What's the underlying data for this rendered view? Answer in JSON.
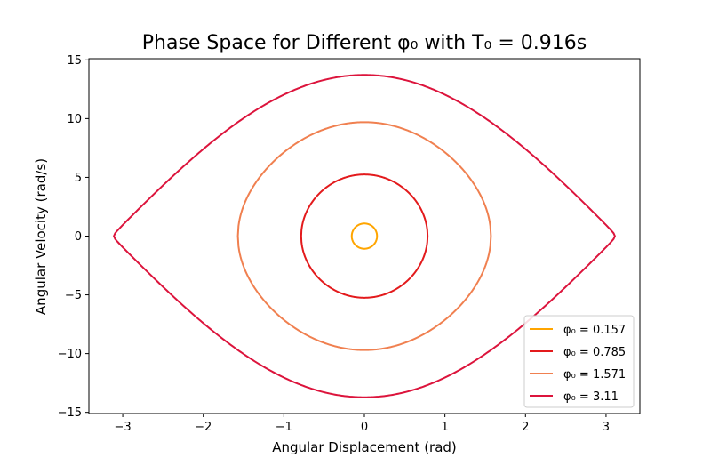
{
  "chart_data": {
    "type": "line",
    "title": "Phase Space for Different φ₀ with T₀ = 0.916s",
    "xlabel": "Angular Displacement (rad)",
    "ylabel": "Angular Velocity (rad/s)",
    "xlim": [
      -3.42,
      3.42
    ],
    "ylim": [
      -15.1,
      15.1
    ],
    "xticks": [
      -3,
      -2,
      -1,
      0,
      1,
      2,
      3
    ],
    "xtick_labels": [
      "−3",
      "−2",
      "−1",
      "0",
      "1",
      "2",
      "3"
    ],
    "yticks": [
      -15,
      -10,
      -5,
      0,
      5,
      10,
      15
    ],
    "ytick_labels": [
      "−15",
      "−10",
      "−5",
      "0",
      "5",
      "10",
      "15"
    ],
    "grid": false,
    "legend_position": "lower-right",
    "series": [
      {
        "name": "φ₀ = 0.157",
        "phi0": 0.157,
        "color": "#ffa500"
      },
      {
        "name": "φ₀ = 0.785",
        "phi0": 0.785,
        "color": "#e31a1c"
      },
      {
        "name": "φ₀ = 1.571",
        "phi0": 1.571,
        "color": "#f08050"
      },
      {
        "name": "φ₀ = 3.11",
        "phi0": 3.11,
        "color": "#dc143c"
      }
    ]
  }
}
